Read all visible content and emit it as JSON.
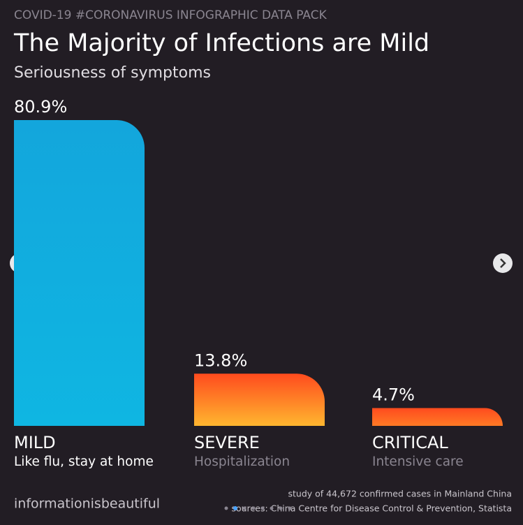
{
  "header": "COVID-19 #CORONAVIRUS INFOGRAPHIC DATA PACK",
  "chart_data": {
    "type": "bar",
    "title": "The Majority of Infections are Mild",
    "subtitle": "Seriousness of symptoms",
    "categories": [
      "MILD",
      "SEVERE",
      "CRITICAL"
    ],
    "descriptions": [
      "Like flu, stay at home",
      "Hospitalization",
      "Intensive care"
    ],
    "values": [
      80.9,
      13.8,
      4.7
    ],
    "value_labels": [
      "80.9%",
      "13.8%",
      "4.7%"
    ],
    "colors": [
      "#13a6dc",
      "#ff4b1e",
      "#ff4b1e"
    ]
  },
  "footer": {
    "brand": "informationisbeautiful",
    "notes": [
      "study of 44,672 confirmed cases in Mainland China",
      "sources: China Centre for Disease Control & Prevention, Statista"
    ]
  }
}
